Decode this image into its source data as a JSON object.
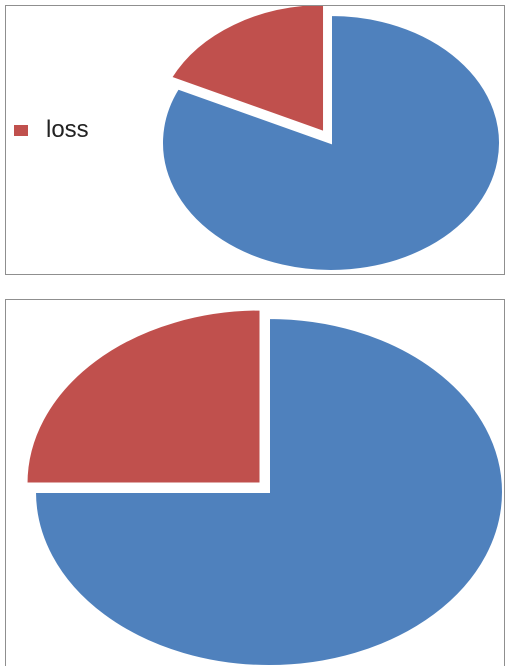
{
  "chart_data": [
    {
      "type": "pie",
      "title": "",
      "categories": [
        "",
        "loss"
      ],
      "values": [
        82,
        18
      ],
      "colors": [
        "#4f81bd",
        "#c0504d"
      ],
      "start_angle_deg": 0,
      "exploded": "loss",
      "legend": {
        "placement": "left",
        "entries": [
          {
            "label": "loss",
            "color": "#c0504d"
          }
        ]
      }
    },
    {
      "type": "pie",
      "title": "",
      "categories": [
        "",
        ""
      ],
      "values": [
        75,
        25
      ],
      "colors": [
        "#4f81bd",
        "#c0504d"
      ],
      "start_angle_deg": 0,
      "exploded": "second slice",
      "legend": null
    }
  ]
}
